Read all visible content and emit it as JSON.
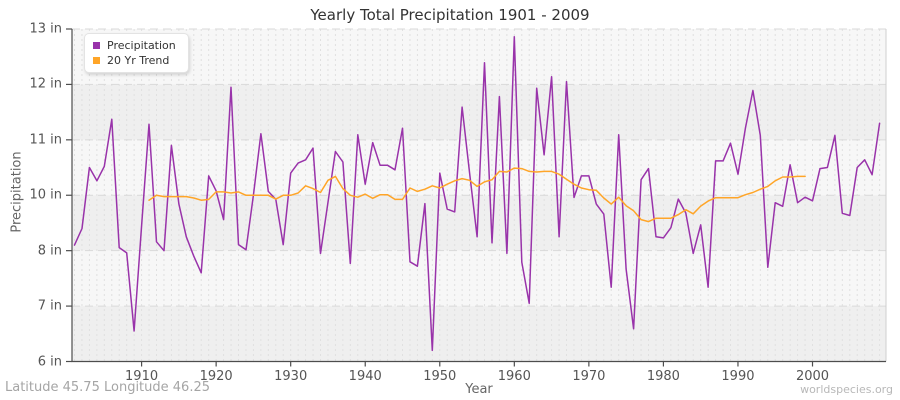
{
  "title": "Yearly Total Precipitation 1901 - 2009",
  "footer": {
    "left": "Latitude 45.75 Longitude 46.25",
    "right": "worldspecies.org"
  },
  "legend": [
    {
      "label": "Precipitation",
      "color": "#9933AA"
    },
    {
      "label": "20 Yr Trend",
      "color": "#FFA528"
    }
  ],
  "axes": {
    "y_title": "Precipitation",
    "x_title": "Year",
    "y_tick_labels": [
      "13 in",
      "12 in",
      "11 in",
      "10 in",
      "8 in",
      "7 in",
      "6 in"
    ],
    "x_tick_years": [
      1910,
      1920,
      1930,
      1940,
      1950,
      1960,
      1970,
      1980,
      1990,
      2000
    ]
  },
  "chart_data": {
    "type": "line",
    "title": "Yearly Total Precipitation 1901 - 2009",
    "xlabel": "Year",
    "ylabel": "Precipitation",
    "x_range": [
      1901,
      2009
    ],
    "y_tick_values_displayed": [
      13,
      12,
      11,
      10,
      8,
      7,
      6
    ],
    "grid": true,
    "legend_position": "top-left",
    "series": [
      {
        "name": "Precipitation",
        "color": "#9933AA",
        "x_start": 1901,
        "values": [
          8.2,
          8.8,
          10.5,
          10.26,
          10.52,
          11.37,
          8.11,
          7.96,
          6.55,
          8.9,
          11.28,
          8.32,
          8.0,
          10.9,
          9.68,
          8.5,
          7.9,
          7.6,
          10.35,
          10.08,
          9.12,
          11.95,
          8.22,
          8.03,
          10.0,
          11.11,
          10.07,
          9.85,
          8.22,
          10.4,
          10.58,
          10.64,
          10.85,
          7.95,
          9.75,
          10.79,
          10.6,
          7.77,
          11.09,
          10.2,
          10.95,
          10.54,
          10.54,
          10.46,
          11.21,
          7.8,
          7.72,
          9.7,
          6.2,
          10.4,
          9.5,
          9.4,
          11.59,
          10.4,
          8.5,
          12.39,
          8.28,
          11.78,
          7.95,
          12.86,
          7.79,
          7.05,
          11.93,
          10.73,
          12.14,
          8.5,
          12.05,
          9.92,
          10.35,
          10.35,
          9.68,
          9.32,
          7.34,
          11.09,
          7.67,
          6.59,
          10.28,
          10.48,
          8.5,
          8.46,
          8.83,
          9.86,
          9.36,
          7.95,
          8.93,
          7.34,
          10.62,
          10.62,
          10.94,
          10.38,
          11.21,
          11.89,
          11.08,
          7.7,
          9.73,
          9.6,
          10.55,
          9.73,
          9.93,
          9.8,
          10.48,
          10.5,
          11.08,
          9.35,
          9.27,
          10.5,
          10.64,
          10.37,
          11.3
        ]
      },
      {
        "name": "20 Yr Trend",
        "color": "#FFA528",
        "x_start": 1911,
        "values": [
          9.82,
          10.0,
          9.95,
          9.95,
          9.95,
          9.95,
          9.9,
          9.82,
          9.85,
          10.06,
          10.06,
          10.04,
          10.06,
          10.0,
          10.0,
          10.0,
          10.0,
          9.86,
          10.0,
          10.0,
          10.04,
          10.17,
          10.12,
          10.05,
          10.27,
          10.34,
          10.12,
          10.0,
          9.93,
          10.02,
          9.89,
          10.01,
          10.01,
          9.85,
          9.85,
          10.13,
          10.07,
          10.11,
          10.17,
          10.13,
          10.2,
          10.26,
          10.3,
          10.27,
          10.16,
          10.24,
          10.28,
          10.43,
          10.42,
          10.49,
          10.48,
          10.43,
          10.42,
          10.43,
          10.43,
          10.38,
          10.29,
          10.2,
          10.13,
          10.1,
          10.09,
          9.9,
          9.68,
          9.93,
          9.62,
          9.44,
          9.12,
          9.05,
          9.17,
          9.17,
          9.17,
          9.3,
          9.48,
          9.33,
          9.61,
          9.79,
          9.91,
          9.91,
          9.91,
          9.91,
          10.01,
          10.05,
          10.11,
          10.16,
          10.26,
          10.33,
          10.33,
          10.34,
          10.34
        ]
      }
    ]
  }
}
